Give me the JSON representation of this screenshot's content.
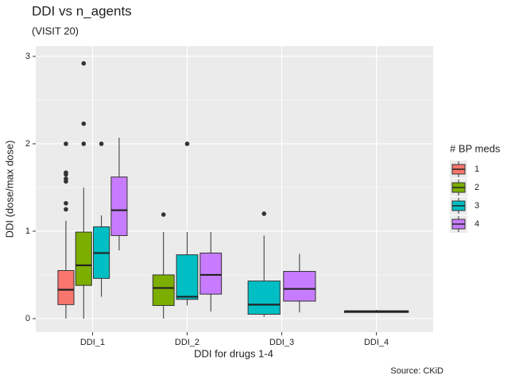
{
  "chart_data": {
    "type": "box",
    "title": "DDI vs n_agents",
    "subtitle": "(VISIT 20)",
    "x_label": "DDI for drugs 1-4",
    "y_label": "DDI (dose/max dose)",
    "caption": "Source: CKiD",
    "legend_title": "# BP meds",
    "legend_position": "right",
    "grid": true,
    "categories": [
      "DDI_1",
      "DDI_2",
      "DDI_3",
      "DDI_4"
    ],
    "ylim": [
      -0.155,
      3.118
    ],
    "yticks": [
      0,
      1,
      2,
      3
    ],
    "series": [
      {
        "name": "1",
        "color": "#F8766D",
        "min": [
          0,
          null,
          null,
          null
        ],
        "q1": [
          0.16,
          null,
          null,
          null
        ],
        "median": [
          0.33,
          null,
          null,
          null
        ],
        "q3": [
          0.55,
          null,
          null,
          null
        ],
        "max": [
          1.12,
          null,
          null,
          null
        ],
        "outliers": [
          [
            2.0,
            1.67,
            1.65,
            1.6,
            1.57,
            1.32,
            1.25
          ],
          null,
          null,
          null
        ]
      },
      {
        "name": "2",
        "color": "#7CAE00",
        "min": [
          0,
          0,
          null,
          null
        ],
        "q1": [
          0.38,
          0.15,
          null,
          null
        ],
        "median": [
          0.61,
          0.35,
          null,
          null
        ],
        "q3": [
          0.99,
          0.5,
          null,
          null
        ],
        "max": [
          1.5,
          0.99,
          null,
          null
        ],
        "outliers": [
          [
            2.92,
            2.23,
            2.0
          ],
          [
            1.19
          ],
          null,
          null
        ]
      },
      {
        "name": "3",
        "color": "#00BFC4",
        "min": [
          0.25,
          0.15,
          0.02,
          null
        ],
        "q1": [
          0.46,
          0.22,
          0.05,
          null
        ],
        "median": [
          0.75,
          0.25,
          0.16,
          null
        ],
        "q3": [
          1.05,
          0.73,
          0.43,
          null
        ],
        "max": [
          1.18,
          0.99,
          0.95,
          null
        ],
        "outliers": [
          [
            2.0
          ],
          [
            2.0
          ],
          [
            1.2
          ],
          null
        ]
      },
      {
        "name": "4",
        "color": "#C77CFF",
        "min": [
          0.78,
          0.08,
          0.07,
          0.07
        ],
        "q1": [
          0.95,
          0.28,
          0.2,
          0.07
        ],
        "median": [
          1.24,
          0.5,
          0.34,
          0.08
        ],
        "q3": [
          1.62,
          0.75,
          0.54,
          0.09
        ],
        "max": [
          2.07,
          0.99,
          0.74,
          0.1
        ],
        "outliers": [
          null,
          null,
          null,
          null
        ]
      }
    ]
  }
}
